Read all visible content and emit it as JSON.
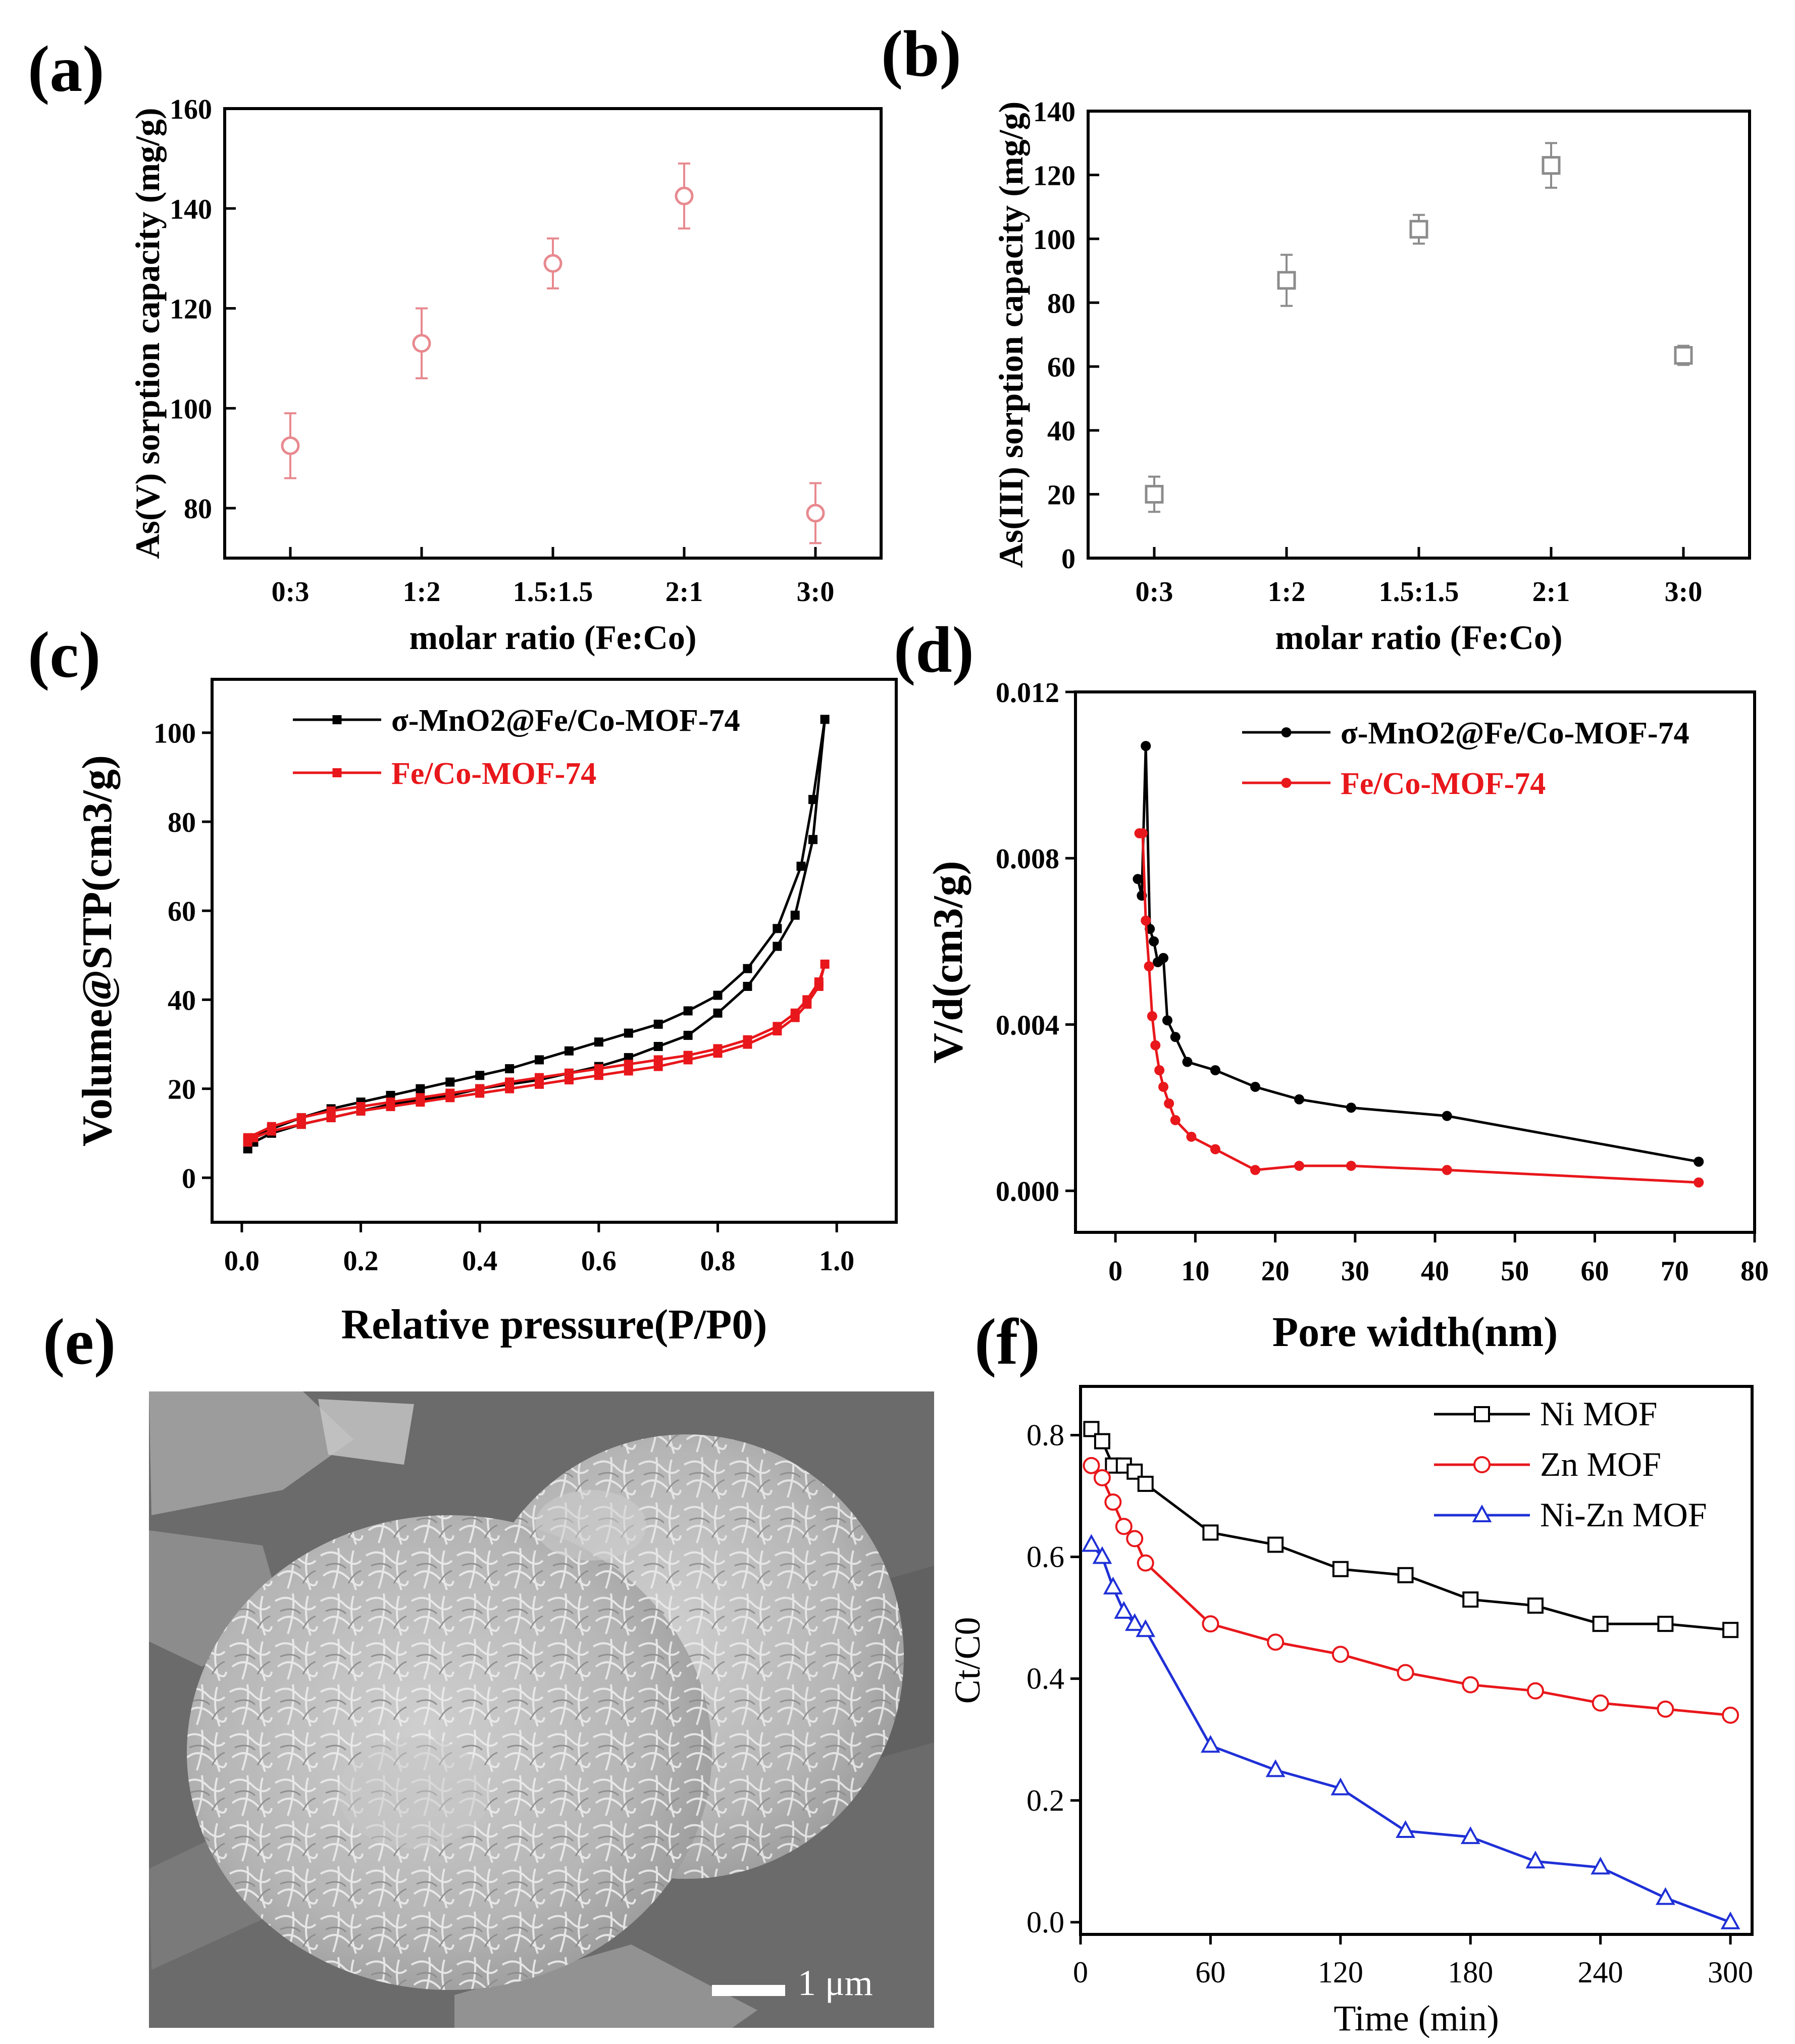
{
  "figure": {
    "panel_labels": [
      "(a)",
      "(b)",
      "(c)",
      "(d)",
      "(e)",
      "(f)"
    ],
    "sem_scale_bar_label": "1 μm"
  },
  "chart_data": [
    {
      "id": "a",
      "type": "scatter",
      "xlabel": "molar ratio (Fe:Co)",
      "ylabel": "As(V) sorption capacity (mg/g)",
      "categories": [
        "0:3",
        "1:2",
        "1.5:1.5",
        "2:1",
        "3:0"
      ],
      "values": [
        92.5,
        113,
        129,
        142.5,
        79
      ],
      "errors": [
        6.5,
        7,
        5,
        6.5,
        6
      ],
      "ylim": [
        70,
        160
      ],
      "yticks": [
        "80",
        "100",
        "120",
        "140",
        "160"
      ],
      "marker": "circle",
      "color": "#e8898f"
    },
    {
      "id": "b",
      "type": "scatter",
      "xlabel": "molar ratio (Fe:Co)",
      "ylabel": "As(III) sorption capacity (mg/g)",
      "categories": [
        "0:3",
        "1:2",
        "1.5:1.5",
        "2:1",
        "3:0"
      ],
      "values": [
        20,
        87,
        103,
        123,
        63.5
      ],
      "errors": [
        5.5,
        8,
        4.5,
        7,
        3
      ],
      "ylim": [
        0,
        140
      ],
      "yticks": [
        "0",
        "20",
        "40",
        "60",
        "80",
        "100",
        "120",
        "140"
      ],
      "marker": "square",
      "color": "#8c8c8c"
    },
    {
      "id": "c",
      "type": "line",
      "xlabel": "Relative pressure(P/P0)",
      "ylabel": "Volume@STP(cm3/g)",
      "xlim": [
        -0.05,
        1.1
      ],
      "ylim": [
        -10,
        112
      ],
      "xticks": [
        "0.0",
        "0.2",
        "0.4",
        "0.6",
        "0.8",
        "1.0"
      ],
      "yticks": [
        "0",
        "20",
        "40",
        "60",
        "80",
        "100"
      ],
      "legend_position": "top-left",
      "series": [
        {
          "name": "σ-MnO2@Fe/Co-MOF-74",
          "color": "#000000",
          "x": [
            0.01,
            0.02,
            0.05,
            0.1,
            0.15,
            0.2,
            0.25,
            0.3,
            0.35,
            0.4,
            0.45,
            0.5,
            0.55,
            0.6,
            0.65,
            0.7,
            0.75,
            0.8,
            0.85,
            0.9,
            0.93,
            0.96,
            0.98,
            0.96,
            0.94,
            0.9,
            0.85,
            0.8,
            0.75,
            0.7,
            0.65,
            0.6,
            0.55,
            0.5,
            0.45,
            0.4,
            0.35,
            0.3,
            0.25,
            0.2,
            0.15,
            0.1,
            0.05,
            0.01
          ],
          "y": [
            6.5,
            8,
            10,
            12,
            13.5,
            15,
            16.5,
            17.5,
            18.5,
            20,
            21,
            22,
            23.5,
            25,
            27,
            29.5,
            32,
            37,
            43,
            52,
            59,
            76,
            103,
            85,
            70,
            56,
            47,
            41,
            37.5,
            34.5,
            32.5,
            30.5,
            28.5,
            26.5,
            24.5,
            23,
            21.5,
            20,
            18.5,
            17,
            15.5,
            13.5,
            11,
            8.5
          ]
        },
        {
          "name": "Fe/Co-MOF-74",
          "color": "#e8171b",
          "x": [
            0.01,
            0.02,
            0.05,
            0.1,
            0.15,
            0.2,
            0.25,
            0.3,
            0.35,
            0.4,
            0.45,
            0.5,
            0.55,
            0.6,
            0.65,
            0.7,
            0.75,
            0.8,
            0.85,
            0.9,
            0.93,
            0.95,
            0.97,
            0.98,
            0.97,
            0.95,
            0.93,
            0.9,
            0.85,
            0.8,
            0.75,
            0.7,
            0.65,
            0.6,
            0.55,
            0.5,
            0.45,
            0.4,
            0.35,
            0.3,
            0.25,
            0.2,
            0.15,
            0.1,
            0.05,
            0.01
          ],
          "y": [
            8,
            9,
            10.5,
            12,
            13.5,
            15,
            16,
            17,
            18,
            19,
            20,
            21,
            22,
            23,
            24,
            25,
            26.5,
            28,
            30,
            33,
            36,
            39,
            43,
            48,
            44,
            40,
            37,
            34,
            31,
            29,
            27.5,
            26.5,
            25.5,
            24.5,
            23.5,
            22.5,
            21.5,
            20,
            19,
            18,
            17,
            16,
            15,
            13.5,
            11.5,
            9
          ]
        }
      ]
    },
    {
      "id": "d",
      "type": "line",
      "xlabel": "Pore width(nm)",
      "ylabel": "V/d(cm3/g)",
      "xlim": [
        -5,
        80
      ],
      "ylim": [
        -0.001,
        0.012
      ],
      "xticks": [
        "0",
        "10",
        "20",
        "30",
        "40",
        "50",
        "60",
        "70",
        "80"
      ],
      "yticks": [
        "0.000",
        "0.004",
        "0.008",
        "0.012"
      ],
      "legend_position": "top-right",
      "series": [
        {
          "name": "σ-MnO2@Fe/Co-MOF-74",
          "color": "#000000",
          "x": [
            2.8,
            3.3,
            3.8,
            4.3,
            4.8,
            5.3,
            6.0,
            6.5,
            7.5,
            9.0,
            12.5,
            17.5,
            23.0,
            29.5,
            41.5,
            73.0
          ],
          "y": [
            0.0075,
            0.0071,
            0.0107,
            0.0063,
            0.006,
            0.0055,
            0.0056,
            0.0041,
            0.0037,
            0.0031,
            0.0029,
            0.0025,
            0.0022,
            0.002,
            0.0018,
            0.0007
          ],
          "marker": "filled-circle"
        },
        {
          "name": "Fe/Co-MOF-74",
          "color": "#e8171b",
          "x": [
            3.0,
            3.4,
            3.8,
            4.2,
            4.6,
            5.0,
            5.5,
            6.0,
            6.7,
            7.5,
            9.5,
            12.5,
            17.5,
            23.0,
            29.5,
            41.5,
            73.0
          ],
          "y": [
            0.0086,
            0.0086,
            0.0065,
            0.0054,
            0.0042,
            0.0035,
            0.0029,
            0.0025,
            0.0021,
            0.0017,
            0.0013,
            0.001,
            0.0005,
            0.0006,
            0.0006,
            0.0005,
            0.0002
          ],
          "marker": "filled-circle"
        }
      ]
    },
    {
      "id": "f",
      "type": "line",
      "xlabel": "Time (min)",
      "ylabel": "Ct/C0",
      "xlim": [
        0,
        310
      ],
      "ylim": [
        -0.02,
        0.88
      ],
      "xticks": [
        "0",
        "60",
        "120",
        "180",
        "240",
        "300"
      ],
      "yticks": [
        "0.0",
        "0.2",
        "0.4",
        "0.6",
        "0.8"
      ],
      "legend_position": "top-right",
      "series": [
        {
          "name": "Ni MOF",
          "color": "#000000",
          "marker": "open-square",
          "x": [
            5,
            10,
            15,
            20,
            25,
            30,
            60,
            90,
            120,
            150,
            180,
            210,
            240,
            270,
            300
          ],
          "y": [
            0.81,
            0.79,
            0.75,
            0.75,
            0.74,
            0.72,
            0.64,
            0.62,
            0.58,
            0.57,
            0.53,
            0.52,
            0.49,
            0.49,
            0.48
          ]
        },
        {
          "name": "Zn MOF",
          "color": "#e8171b",
          "marker": "open-circle",
          "x": [
            5,
            10,
            15,
            20,
            25,
            30,
            60,
            90,
            120,
            150,
            180,
            210,
            240,
            270,
            300
          ],
          "y": [
            0.75,
            0.73,
            0.69,
            0.65,
            0.63,
            0.59,
            0.49,
            0.46,
            0.44,
            0.41,
            0.39,
            0.38,
            0.36,
            0.35,
            0.34
          ]
        },
        {
          "name": "Ni-Zn MOF",
          "color": "#1f30d6",
          "marker": "open-triangle",
          "x": [
            5,
            10,
            15,
            20,
            25,
            30,
            60,
            90,
            120,
            150,
            180,
            210,
            240,
            270,
            300
          ],
          "y": [
            0.62,
            0.6,
            0.55,
            0.51,
            0.49,
            0.48,
            0.29,
            0.25,
            0.22,
            0.15,
            0.14,
            0.1,
            0.09,
            0.04,
            0.0
          ]
        }
      ]
    }
  ]
}
